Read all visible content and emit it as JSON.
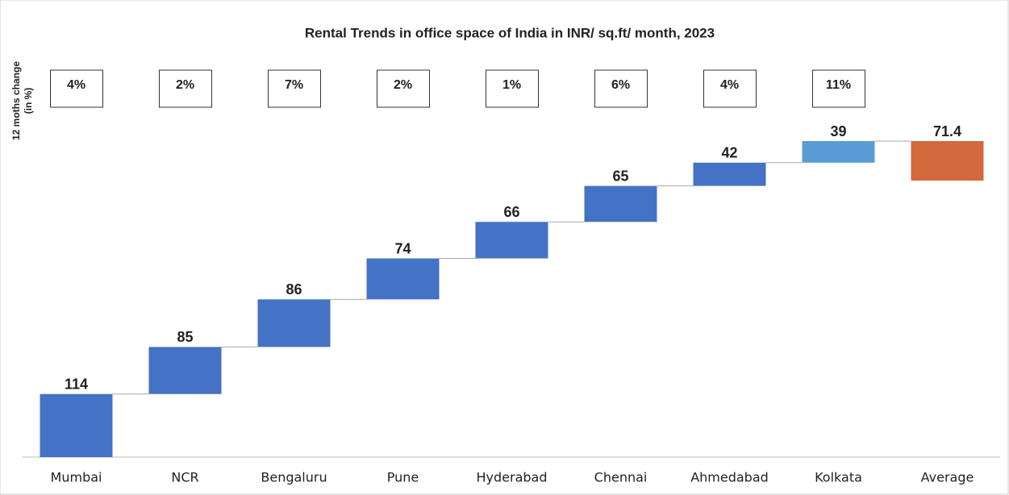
{
  "chart_data": {
    "type": "waterfall",
    "title": "Rental Trends in office space of India in INR/ sq.ft/ month, 2023",
    "change_axis_label": [
      "12 moths change",
      "(in %)"
    ],
    "categories": [
      "Mumbai",
      "NCR",
      "Bengaluru",
      "Pune",
      "Hyderabad",
      "Chennai",
      "Ahmedabad",
      "Kolkata",
      "Average"
    ],
    "values": [
      114,
      85,
      86,
      74,
      66,
      65,
      42,
      39,
      71.4
    ],
    "colors": [
      "#4472c4",
      "#4472c4",
      "#4472c4",
      "#4472c4",
      "#4472c4",
      "#4472c4",
      "#4472c4",
      "#5b9bd5",
      "#d4693c"
    ],
    "change": [
      4,
      2,
      7,
      2,
      1,
      6,
      4,
      11
    ],
    "change_labels": [
      "4%",
      "2%",
      "7%",
      "2%",
      "1%",
      "6%",
      "4%",
      "11%"
    ]
  }
}
